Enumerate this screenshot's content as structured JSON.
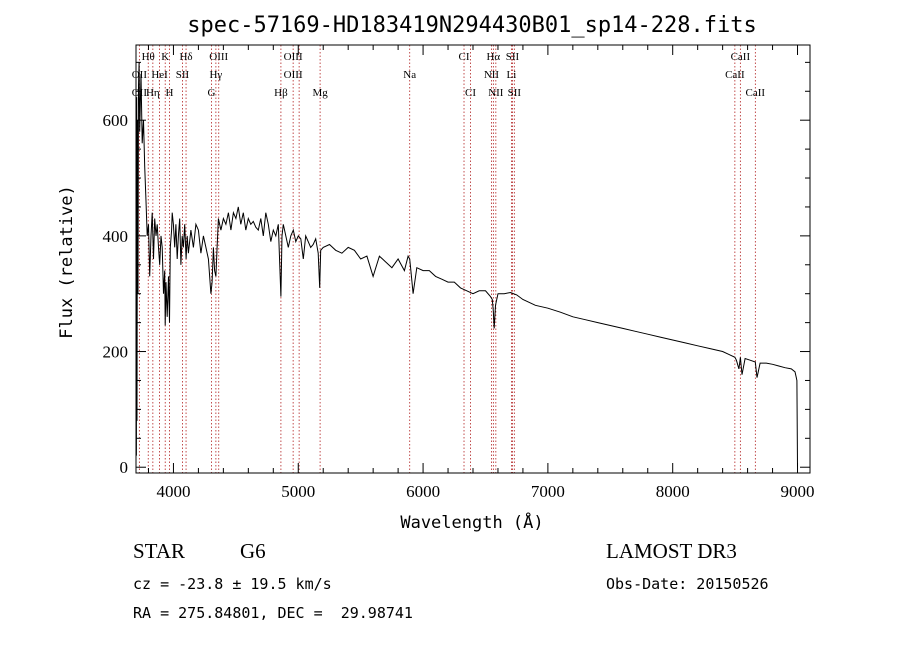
{
  "chart_data": {
    "type": "line",
    "title": "spec-57169-HD183419N294430B01_sp14-228.fits",
    "xlabel": "Wavelength (Å)",
    "ylabel": "Flux (relative)",
    "xlim": [
      3700,
      9100
    ],
    "ylim": [
      -10,
      730
    ],
    "x_ticks": [
      4000,
      5000,
      6000,
      7000,
      8000,
      9000
    ],
    "y_ticks": [
      0,
      200,
      400,
      600
    ],
    "x_tick_labels": [
      "4000",
      "5000",
      "6000",
      "7000",
      "8000",
      "9000"
    ],
    "y_tick_labels": [
      "0",
      "200",
      "400",
      "600"
    ],
    "series": [
      {
        "name": "spectrum",
        "x": [
          3700,
          3703,
          3706,
          3708,
          3712,
          3716,
          3720,
          3725,
          3730,
          3740,
          3750,
          3760,
          3770,
          3780,
          3790,
          3800,
          3810,
          3820,
          3830,
          3840,
          3850,
          3860,
          3870,
          3880,
          3890,
          3900,
          3910,
          3920,
          3930,
          3934,
          3940,
          3950,
          3960,
          3968,
          3975,
          3985,
          3990,
          4000,
          4010,
          4020,
          4030,
          4040,
          4050,
          4060,
          4070,
          4080,
          4090,
          4101,
          4110,
          4120,
          4140,
          4160,
          4180,
          4200,
          4220,
          4240,
          4260,
          4280,
          4300,
          4310,
          4320,
          4330,
          4340,
          4350,
          4360,
          4380,
          4400,
          4420,
          4440,
          4460,
          4480,
          4500,
          4520,
          4540,
          4560,
          4580,
          4600,
          4620,
          4640,
          4660,
          4680,
          4700,
          4720,
          4740,
          4760,
          4780,
          4800,
          4820,
          4840,
          4861,
          4870,
          4880,
          4900,
          4920,
          4940,
          4960,
          4980,
          5000,
          5020,
          5040,
          5060,
          5080,
          5100,
          5120,
          5140,
          5160,
          5172,
          5180,
          5200,
          5250,
          5300,
          5350,
          5400,
          5450,
          5500,
          5550,
          5600,
          5650,
          5700,
          5750,
          5800,
          5850,
          5880,
          5893,
          5900,
          5920,
          5950,
          6000,
          6050,
          6100,
          6150,
          6200,
          6250,
          6300,
          6350,
          6400,
          6450,
          6500,
          6540,
          6555,
          6563,
          6570,
          6580,
          6600,
          6650,
          6700,
          6750,
          6800,
          6900,
          7000,
          7100,
          7200,
          7300,
          7400,
          7500,
          7600,
          7700,
          7800,
          7900,
          8000,
          8100,
          8200,
          8300,
          8400,
          8450,
          8498,
          8510,
          8530,
          8542,
          8555,
          8580,
          8620,
          8662,
          8675,
          8700,
          8750,
          8800,
          8850,
          8900,
          8950,
          8980,
          8990,
          8995,
          9000
        ],
        "y": [
          600,
          20,
          640,
          80,
          600,
          300,
          660,
          700,
          580,
          680,
          560,
          600,
          520,
          460,
          400,
          420,
          330,
          400,
          440,
          360,
          430,
          400,
          420,
          380,
          350,
          400,
          380,
          300,
          340,
          245,
          320,
          260,
          330,
          250,
          380,
          410,
          440,
          420,
          380,
          420,
          360,
          400,
          430,
          350,
          400,
          380,
          420,
          360,
          400,
          370,
          410,
          380,
          420,
          410,
          370,
          400,
          380,
          360,
          300,
          320,
          380,
          340,
          330,
          380,
          430,
          410,
          430,
          420,
          440,
          410,
          440,
          430,
          450,
          420,
          440,
          410,
          430,
          420,
          425,
          415,
          410,
          430,
          400,
          440,
          420,
          390,
          410,
          400,
          420,
          295,
          400,
          420,
          400,
          380,
          400,
          410,
          390,
          400,
          395,
          360,
          400,
          390,
          380,
          385,
          395,
          370,
          310,
          375,
          380,
          385,
          375,
          370,
          380,
          375,
          360,
          365,
          330,
          365,
          355,
          345,
          360,
          340,
          365,
          360,
          345,
          300,
          345,
          340,
          340,
          330,
          325,
          320,
          320,
          310,
          305,
          300,
          305,
          305,
          295,
          290,
          270,
          240,
          280,
          300,
          300,
          302,
          298,
          290,
          280,
          275,
          268,
          260,
          255,
          250,
          245,
          240,
          235,
          230,
          225,
          220,
          215,
          210,
          205,
          200,
          195,
          190,
          185,
          170,
          190,
          160,
          188,
          185,
          182,
          155,
          180,
          180,
          178,
          175,
          172,
          170,
          165,
          155,
          150,
          0
        ]
      }
    ],
    "spectral_lines": [
      {
        "label": "Hθ",
        "x": 3798,
        "row": 0
      },
      {
        "label": "K",
        "x": 3934,
        "row": 0
      },
      {
        "label": "Hδ",
        "x": 4101,
        "row": 0
      },
      {
        "label": "OIII",
        "x": 4363,
        "row": 0
      },
      {
        "label": "OIII",
        "x": 4959,
        "row": 0
      },
      {
        "label": "CI",
        "x": 6328,
        "row": 0
      },
      {
        "label": "Hα",
        "x": 6563,
        "row": 0
      },
      {
        "label": "SII",
        "x": 6716,
        "row": 0
      },
      {
        "label": "CaII",
        "x": 8542,
        "row": 0
      },
      {
        "label": "OII",
        "x": 3727,
        "row": 1
      },
      {
        "label": "HeI",
        "x": 3889,
        "row": 1
      },
      {
        "label": "SII",
        "x": 4072,
        "row": 1
      },
      {
        "label": "Hγ",
        "x": 4340,
        "row": 1
      },
      {
        "label": "OIII",
        "x": 4959,
        "row": 1
      },
      {
        "label": "Na",
        "x": 5893,
        "row": 1
      },
      {
        "label": "NII",
        "x": 6548,
        "row": 1
      },
      {
        "label": "Li",
        "x": 6708,
        "row": 1
      },
      {
        "label": "CaII",
        "x": 8498,
        "row": 1
      },
      {
        "label": "OII",
        "x": 3727,
        "row": 2
      },
      {
        "label": "Hη",
        "x": 3835,
        "row": 2
      },
      {
        "label": "H",
        "x": 3968,
        "row": 2
      },
      {
        "label": "G",
        "x": 4305,
        "row": 2
      },
      {
        "label": "Hβ",
        "x": 4861,
        "row": 2
      },
      {
        "label": "Mg",
        "x": 5175,
        "row": 2
      },
      {
        "label": "CI",
        "x": 6380,
        "row": 2
      },
      {
        "label": "NII",
        "x": 6583,
        "row": 2
      },
      {
        "label": "SII",
        "x": 6731,
        "row": 2
      },
      {
        "label": "CaII",
        "x": 8662,
        "row": 2
      }
    ],
    "line_markers": [
      3727,
      3798,
      3835,
      3889,
      3934,
      3968,
      4072,
      4101,
      4305,
      4340,
      4363,
      4861,
      4959,
      5007,
      5175,
      5893,
      6328,
      6380,
      6548,
      6563,
      6583,
      6708,
      6716,
      6731,
      8498,
      8542,
      8662
    ]
  },
  "info": {
    "object_type": "STAR",
    "subclass": "G6",
    "survey": "LAMOST DR3",
    "redshift": "cz = -23.8 ± 19.5 km/s",
    "obs_date": "Obs-Date: 20150526",
    "coords": "RA = 275.84801, DEC =  29.98741"
  },
  "colors": {
    "marker_line": "#b22222",
    "spectrum": "#000000",
    "axes": "#000000"
  }
}
